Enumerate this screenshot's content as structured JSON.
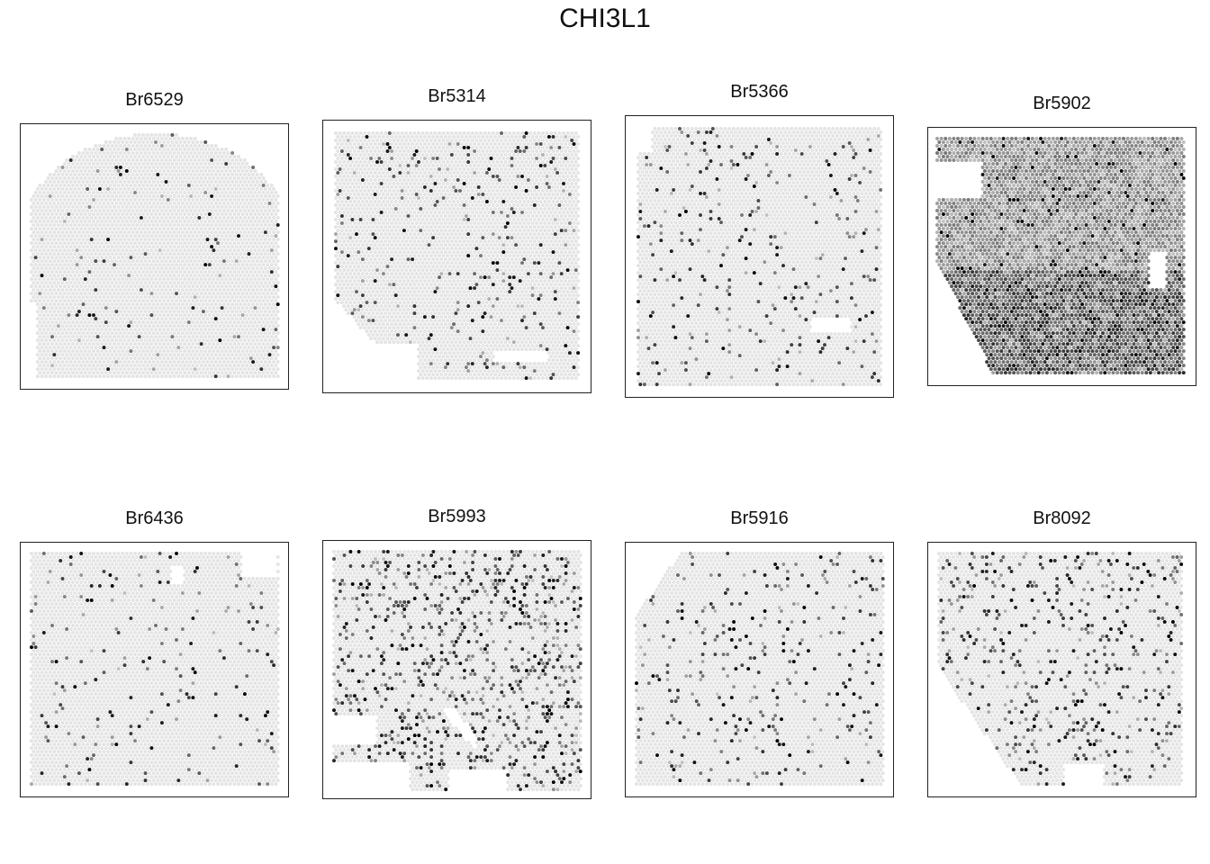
{
  "chart_data": {
    "type": "scatter",
    "title": "CHI3L1",
    "colors": {
      "low": "#e3e3e3",
      "high": "#000000",
      "frame": "#222222"
    },
    "panels": [
      {
        "id": "p1",
        "name": "Br6529",
        "density": 0.04,
        "dark": "sparse"
      },
      {
        "id": "p2",
        "name": "Br5314",
        "density": 0.09,
        "dark": "sparse"
      },
      {
        "id": "p3",
        "name": "Br5366",
        "density": 0.07,
        "dark": "sparse"
      },
      {
        "id": "p4",
        "name": "Br5902",
        "density": 0.85,
        "dark": "dense"
      },
      {
        "id": "p5",
        "name": "Br6436",
        "density": 0.05,
        "dark": "sparse"
      },
      {
        "id": "p6",
        "name": "Br5993",
        "density": 0.22,
        "dark": "moderate"
      },
      {
        "id": "p7",
        "name": "Br5916",
        "density": 0.08,
        "dark": "sparse"
      },
      {
        "id": "p8",
        "name": "Br8092",
        "density": 0.14,
        "dark": "moderate"
      }
    ]
  }
}
